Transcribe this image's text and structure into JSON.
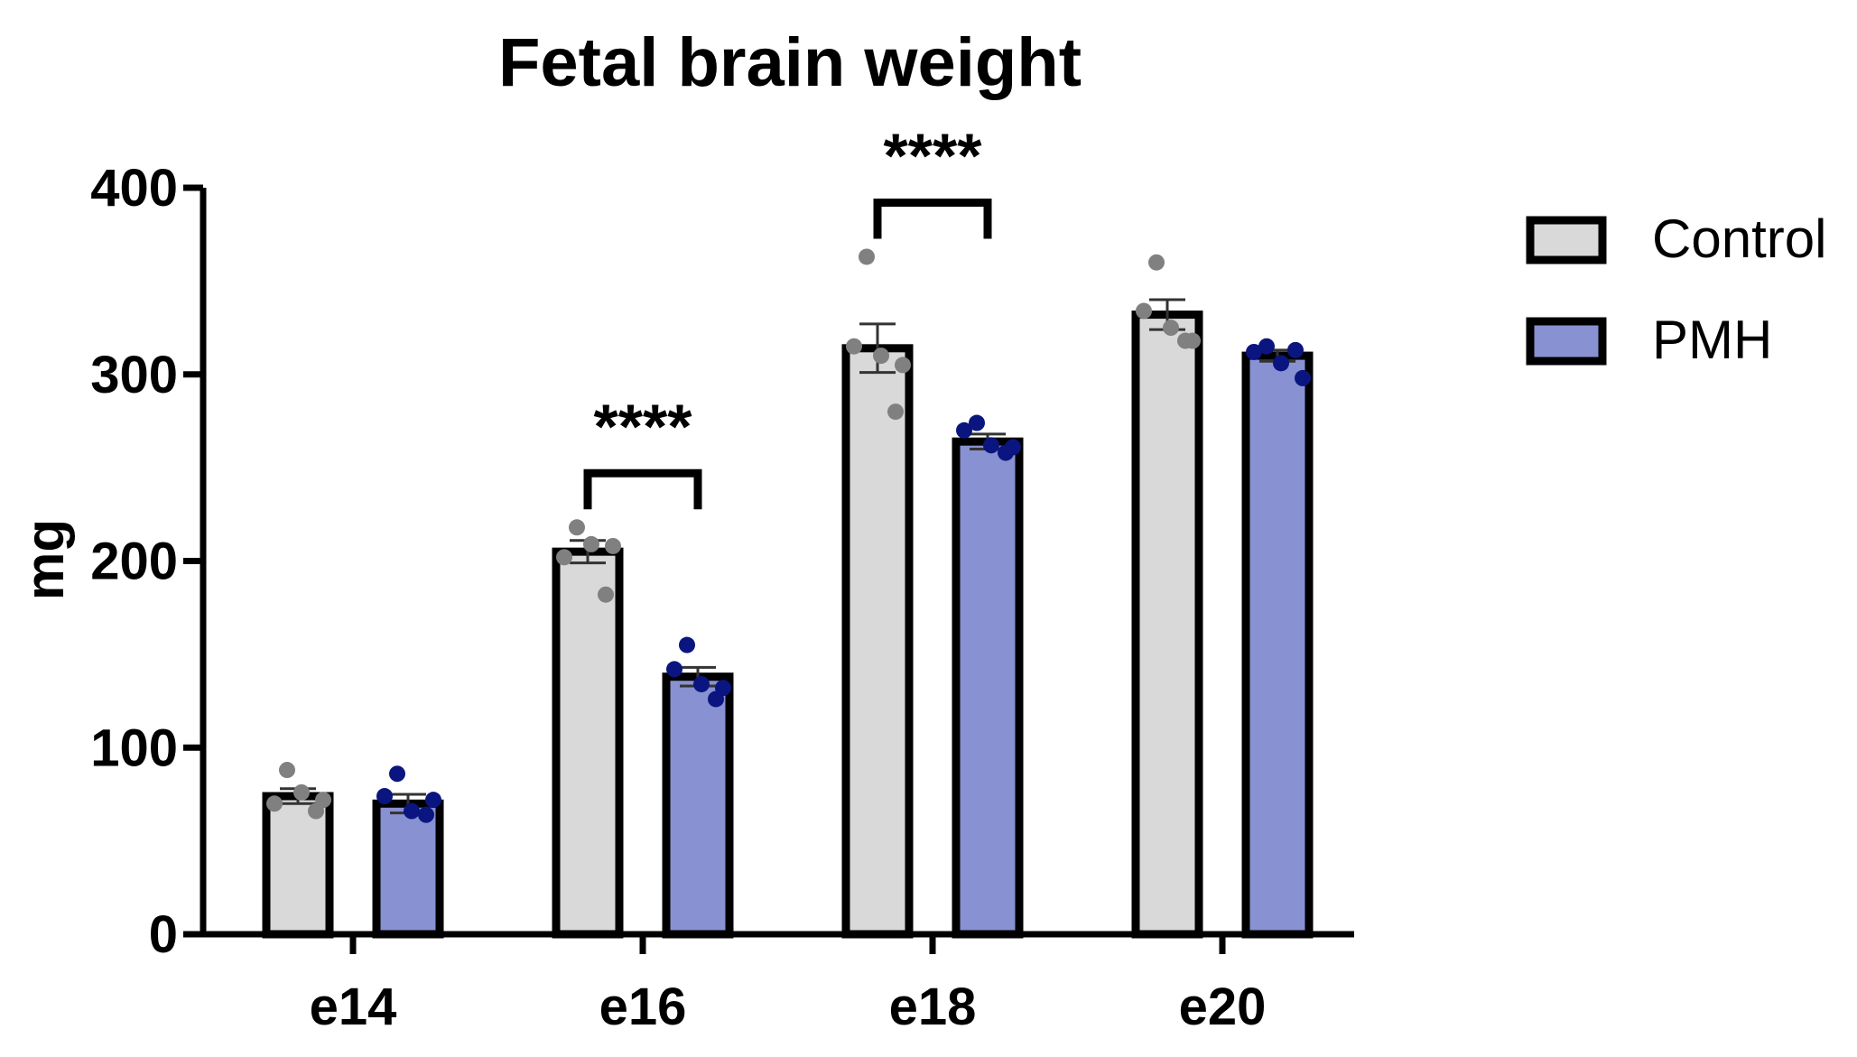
{
  "chart_data": {
    "type": "bar",
    "title": "Fetal brain weight",
    "xlabel": "",
    "ylabel": "mg",
    "ylim": [
      0,
      400
    ],
    "yticks": [
      0,
      100,
      200,
      300,
      400
    ],
    "categories": [
      "e14",
      "e16",
      "e18",
      "e20"
    ],
    "series": [
      {
        "name": "Control",
        "color": "#d9d9d9",
        "point_color": "#808080",
        "values": [
          74,
          205,
          314,
          332
        ],
        "sem": [
          4,
          6,
          13,
          8
        ],
        "points": [
          [
            88,
            70,
            76,
            66,
            72
          ],
          [
            218,
            202,
            209,
            182,
            208
          ],
          [
            363,
            315,
            310,
            280,
            305
          ],
          [
            360,
            334,
            325,
            318,
            318
          ]
        ]
      },
      {
        "name": "PMH",
        "color": "#8891d1",
        "point_color": "#0a1580",
        "values": [
          70,
          138,
          264,
          310
        ],
        "sem": [
          5,
          5,
          4,
          3
        ],
        "points": [
          [
            86,
            74,
            66,
            64,
            72
          ],
          [
            155,
            142,
            134,
            126,
            132
          ],
          [
            274,
            270,
            262,
            258,
            261
          ],
          [
            315,
            312,
            306,
            313,
            298
          ]
        ]
      }
    ],
    "significance": [
      {
        "category": "e16",
        "label": "****"
      },
      {
        "category": "e18",
        "label": "****"
      }
    ],
    "legend_position": "right",
    "grid": false
  }
}
